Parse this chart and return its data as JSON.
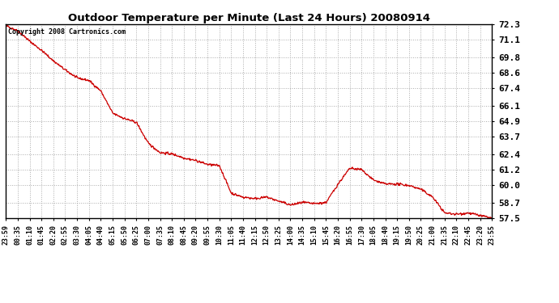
{
  "title": "Outdoor Temperature per Minute (Last 24 Hours) 20080914",
  "copyright_text": "Copyright 2008 Cartronics.com",
  "line_color": "#cc0000",
  "background_color": "#ffffff",
  "grid_color": "#aaaaaa",
  "ylim": [
    57.5,
    72.3
  ],
  "yticks": [
    57.5,
    58.7,
    60.0,
    61.2,
    62.4,
    63.7,
    64.9,
    66.1,
    67.4,
    68.6,
    69.8,
    71.1,
    72.3
  ],
  "xtick_labels": [
    "23:59",
    "00:35",
    "01:10",
    "01:45",
    "02:20",
    "02:55",
    "03:30",
    "04:05",
    "04:40",
    "05:15",
    "05:50",
    "06:25",
    "07:00",
    "07:35",
    "08:10",
    "08:45",
    "09:20",
    "09:55",
    "10:30",
    "11:05",
    "11:40",
    "12:15",
    "12:50",
    "13:25",
    "14:00",
    "14:35",
    "15:10",
    "15:45",
    "16:20",
    "16:55",
    "17:30",
    "18:05",
    "18:40",
    "19:15",
    "19:50",
    "20:25",
    "21:00",
    "21:35",
    "22:10",
    "22:45",
    "23:20",
    "23:55"
  ],
  "key_times": [
    0,
    36,
    71,
    106,
    141,
    176,
    211,
    246,
    281,
    316,
    351,
    386,
    421,
    456,
    491,
    526,
    561,
    596,
    631,
    666,
    701,
    736,
    771,
    806,
    841,
    876,
    911,
    946,
    981,
    1016,
    1051,
    1086,
    1121,
    1156,
    1191,
    1226,
    1261,
    1296,
    1331,
    1366,
    1401,
    1436
  ],
  "key_values": [
    72.2,
    71.8,
    71.0,
    70.3,
    69.5,
    68.8,
    68.2,
    68.0,
    67.2,
    65.5,
    65.1,
    64.8,
    63.2,
    62.5,
    62.4,
    62.1,
    61.9,
    61.6,
    61.5,
    59.4,
    59.1,
    59.0,
    59.1,
    58.8,
    58.5,
    58.7,
    58.6,
    58.7,
    60.1,
    61.3,
    61.2,
    60.4,
    60.1,
    60.1,
    60.0,
    59.7,
    59.1,
    57.9,
    57.8,
    57.9,
    57.7,
    57.5
  ]
}
